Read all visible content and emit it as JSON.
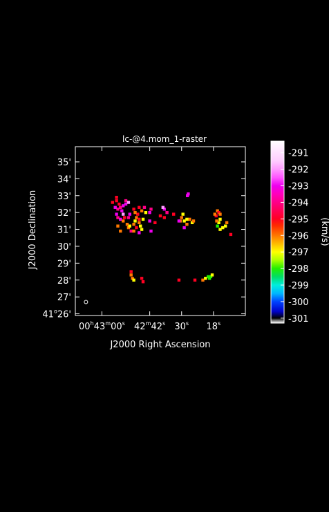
{
  "chart_data": {
    "type": "heatmap",
    "title": "lc-@4.mom_1-raster",
    "xlabel": "J2000 Right Ascension",
    "ylabel": "J2000 Declination",
    "colorbar_label": "(km/s)",
    "x_ticks": [
      {
        "value": "00h43m00s",
        "parts": [
          [
            "00",
            "base"
          ],
          [
            "h",
            "sup"
          ],
          [
            "43",
            "base"
          ],
          [
            "m",
            "sup"
          ],
          [
            "00",
            "base"
          ],
          [
            "s",
            "sup"
          ]
        ]
      },
      {
        "value": "42m42s",
        "parts": [
          [
            "42",
            "base"
          ],
          [
            "m",
            "sup"
          ],
          [
            "42",
            "base"
          ],
          [
            "s",
            "sup"
          ]
        ]
      },
      {
        "value": "30s",
        "parts": [
          [
            "30",
            "base"
          ],
          [
            "s",
            "sup"
          ]
        ]
      },
      {
        "value": "18s",
        "parts": [
          [
            "18",
            "base"
          ],
          [
            "s",
            "sup"
          ]
        ]
      }
    ],
    "x_tick_seconds": [
      2580,
      2562,
      2550,
      2538
    ],
    "xlim_seconds": [
      2590,
      2526
    ],
    "y_ticks": [
      {
        "value": "41°26'",
        "parts": [
          [
            "41",
            "base"
          ],
          [
            "o",
            "sup"
          ],
          [
            "26'",
            "base"
          ]
        ]
      },
      {
        "value": "27'",
        "parts": [
          [
            "27'",
            "base"
          ]
        ]
      },
      {
        "value": "28'",
        "parts": [
          [
            "28'",
            "base"
          ]
        ]
      },
      {
        "value": "29'",
        "parts": [
          [
            "29'",
            "base"
          ]
        ]
      },
      {
        "value": "30'",
        "parts": [
          [
            "30'",
            "base"
          ]
        ]
      },
      {
        "value": "31'",
        "parts": [
          [
            "31'",
            "base"
          ]
        ]
      },
      {
        "value": "32'",
        "parts": [
          [
            "32'",
            "base"
          ]
        ]
      },
      {
        "value": "33'",
        "parts": [
          [
            "33'",
            "base"
          ]
        ]
      },
      {
        "value": "34'",
        "parts": [
          [
            "34'",
            "base"
          ]
        ]
      },
      {
        "value": "35'",
        "parts": [
          [
            "35'",
            "base"
          ]
        ]
      }
    ],
    "y_tick_arcmin": [
      26,
      27,
      28,
      29,
      30,
      31,
      32,
      33,
      34,
      35
    ],
    "ylim_arcmin": [
      25.9,
      35.9
    ],
    "colorbar_ticks": [
      -291,
      -292,
      -293,
      -294,
      -295,
      -296,
      -297,
      -298,
      -299,
      -300,
      -301
    ],
    "colorbar_range": [
      -301.3,
      -290.3
    ],
    "colormap": [
      {
        "v": -301.3,
        "color": "#ffffff"
      },
      {
        "v": -301.0,
        "color": "#000000"
      },
      {
        "v": -300.6,
        "color": "#0000c8"
      },
      {
        "v": -300.0,
        "color": "#0044ff"
      },
      {
        "v": -299.5,
        "color": "#00b8ff"
      },
      {
        "v": -299.0,
        "color": "#00eedd"
      },
      {
        "v": -298.5,
        "color": "#00dd66"
      },
      {
        "v": -298.0,
        "color": "#22ee00"
      },
      {
        "v": -297.5,
        "color": "#aaff00"
      },
      {
        "v": -297.0,
        "color": "#ffff00"
      },
      {
        "v": -296.5,
        "color": "#ffbb00"
      },
      {
        "v": -296.0,
        "color": "#ff7700"
      },
      {
        "v": -295.4,
        "color": "#ff2a00"
      },
      {
        "v": -295.0,
        "color": "#ff0022"
      },
      {
        "v": -294.5,
        "color": "#ff0055"
      },
      {
        "v": -294.0,
        "color": "#ff0088"
      },
      {
        "v": -293.5,
        "color": "#ff00bb"
      },
      {
        "v": -293.0,
        "color": "#ee00ee"
      },
      {
        "v": -292.5,
        "color": "#ff55ff"
      },
      {
        "v": -292.0,
        "color": "#ff99ff"
      },
      {
        "v": -291.5,
        "color": "#ffccff"
      },
      {
        "v": -290.8,
        "color": "#ffe8ff"
      },
      {
        "v": -290.3,
        "color": "#ffffff"
      }
    ],
    "grid": false,
    "colorbar_position": "right",
    "beam_marker": {
      "ra_s": 2586,
      "dec_arcmin": 26.7
    },
    "pixels": [
      [
        2571,
        32.5,
        -293
      ],
      [
        2572,
        32.4,
        -293
      ],
      [
        2573,
        32.3,
        -294
      ],
      [
        2574,
        32.2,
        -294
      ],
      [
        2574.5,
        31.9,
        -293
      ],
      [
        2574,
        31.7,
        -294
      ],
      [
        2573,
        31.6,
        -293
      ],
      [
        2572,
        31.9,
        -292
      ],
      [
        2572.5,
        32.1,
        -293
      ],
      [
        2573.5,
        32.5,
        -295
      ],
      [
        2571.5,
        31.7,
        -295
      ],
      [
        2572,
        31.5,
        -296
      ],
      [
        2570,
        31.7,
        -294
      ],
      [
        2569.5,
        31.9,
        -293
      ],
      [
        2570.5,
        31.3,
        -296
      ],
      [
        2570,
        31.1,
        -296
      ],
      [
        2569.5,
        31.2,
        -297
      ],
      [
        2568,
        31.3,
        -296
      ],
      [
        2567.5,
        31.5,
        -297
      ],
      [
        2567,
        31.7,
        -296
      ],
      [
        2566.5,
        31.9,
        -295
      ],
      [
        2567.5,
        32.0,
        -296
      ],
      [
        2568,
        32.2,
        -295
      ],
      [
        2566,
        31.6,
        -295
      ],
      [
        2566,
        31.4,
        -296
      ],
      [
        2565.5,
        31.2,
        -297
      ],
      [
        2567,
        31.1,
        -295
      ],
      [
        2569,
        30.9,
        -294
      ],
      [
        2574.5,
        32.7,
        -295
      ],
      [
        2575,
        32.3,
        -293
      ],
      [
        2576,
        32.6,
        -295
      ],
      [
        2564,
        32.3,
        -294
      ],
      [
        2563.5,
        32.0,
        -297
      ],
      [
        2566,
        32.3,
        -295
      ],
      [
        2565,
        32.1,
        -296
      ],
      [
        2564.5,
        31.6,
        -297
      ],
      [
        2565,
        31.0,
        -297
      ],
      [
        2568,
        30.9,
        -296
      ],
      [
        2571,
        32.7,
        -294
      ],
      [
        2570,
        32.6,
        -292
      ],
      [
        2562,
        31.5,
        -293
      ],
      [
        2560,
        31.4,
        -295
      ],
      [
        2556.5,
        32.2,
        -293
      ],
      [
        2557,
        32.3,
        -292
      ],
      [
        2555.5,
        32.0,
        -294
      ],
      [
        2556.5,
        31.7,
        -295
      ],
      [
        2553,
        31.9,
        -295
      ],
      [
        2558,
        31.8,
        -295
      ],
      [
        2566,
        30.8,
        -293
      ],
      [
        2547,
        31.6,
        -296
      ],
      [
        2548,
        31.6,
        -297
      ],
      [
        2549,
        31.5,
        -297
      ],
      [
        2550,
        31.7,
        -296
      ],
      [
        2549.5,
        31.9,
        -297
      ],
      [
        2548,
        31.3,
        -296
      ],
      [
        2546,
        31.4,
        -297
      ],
      [
        2545.5,
        31.5,
        -296
      ],
      [
        2550.5,
        31.5,
        -296
      ],
      [
        2549,
        31.1,
        -293
      ],
      [
        2547.5,
        33.1,
        -293
      ],
      [
        2547.8,
        33.0,
        -293
      ],
      [
        2574.5,
        32.9,
        -295
      ],
      [
        2561.5,
        30.9,
        -293
      ],
      [
        2551,
        31.5,
        -293
      ],
      [
        2536.5,
        32.1,
        -296
      ],
      [
        2536,
        32.0,
        -295
      ],
      [
        2535.5,
        31.9,
        -296
      ],
      [
        2535.5,
        31.6,
        -297
      ],
      [
        2536,
        31.4,
        -297
      ],
      [
        2536.5,
        31.2,
        -298
      ],
      [
        2535.5,
        31.0,
        -297
      ],
      [
        2537,
        31.8,
        -295
      ],
      [
        2537.5,
        31.9,
        -296
      ],
      [
        2536.8,
        31.5,
        -296
      ],
      [
        2533,
        31.4,
        -296
      ],
      [
        2533.5,
        31.2,
        -297
      ],
      [
        2531.5,
        30.7,
        -295
      ],
      [
        2534.5,
        31.1,
        -297
      ],
      [
        2569,
        28.5,
        -295
      ],
      [
        2569,
        28.3,
        -296
      ],
      [
        2568.5,
        28.1,
        -296
      ],
      [
        2568,
        28.0,
        -297
      ],
      [
        2565,
        28.1,
        -295
      ],
      [
        2564.5,
        27.9,
        -295
      ],
      [
        2551,
        28.0,
        -295
      ],
      [
        2545,
        28.0,
        -295
      ],
      [
        2542,
        28.0,
        -296
      ],
      [
        2541,
        28.1,
        -297
      ],
      [
        2540,
        28.2,
        -298
      ],
      [
        2539,
        28.2,
        -298
      ],
      [
        2538.5,
        28.3,
        -297
      ],
      [
        2539.5,
        28.1,
        -298
      ],
      [
        2562,
        32.0,
        -293
      ],
      [
        2561.5,
        32.2,
        -294
      ],
      [
        2573,
        30.9,
        -296
      ],
      [
        2574,
        31.2,
        -296
      ]
    ]
  }
}
